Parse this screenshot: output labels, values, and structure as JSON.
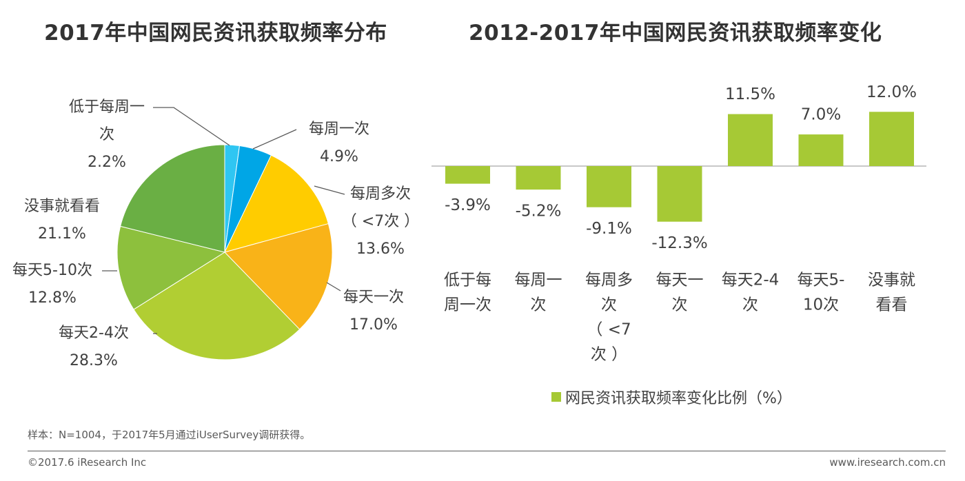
{
  "chart_data": [
    {
      "type": "pie",
      "title": "2017年中国网民资讯获取频率分布",
      "slices": [
        {
          "name": "低于每周一次",
          "label_lines": [
            "低于每周一",
            "次"
          ],
          "value": 2.2,
          "value_label": "2.2%",
          "color": "#2fc6f2"
        },
        {
          "name": "每周一次",
          "label_lines": [
            "每周一次"
          ],
          "value": 4.9,
          "value_label": "4.9%",
          "color": "#00a6e6"
        },
        {
          "name": "每周多次(<7次)",
          "label_lines": [
            "每周多次",
            "（ <7次 ）"
          ],
          "value": 13.6,
          "value_label": "13.6%",
          "color": "#ffcc00"
        },
        {
          "name": "每天一次",
          "label_lines": [
            "每天一次"
          ],
          "value": 17.0,
          "value_label": "17.0%",
          "color": "#f9b318"
        },
        {
          "name": "每天2-4次",
          "label_lines": [
            "每天2-4次"
          ],
          "value": 28.3,
          "value_label": "28.3%",
          "color": "#b1ce33"
        },
        {
          "name": "每天5-10次",
          "label_lines": [
            "每天5-10次"
          ],
          "value": 12.8,
          "value_label": "12.8%",
          "color": "#8dc03d"
        },
        {
          "name": "没事就看看",
          "label_lines": [
            "没事就看看"
          ],
          "value": 21.1,
          "value_label": "21.1%",
          "color": "#6aaf44"
        }
      ]
    },
    {
      "type": "bar",
      "title": "2012-2017年中国网民资讯获取频率变化",
      "categories": [
        {
          "name": "低于每周一次",
          "lines": [
            "低于每",
            "周一次"
          ]
        },
        {
          "name": "每周一次",
          "lines": [
            "每周一",
            "次"
          ]
        },
        {
          "name": "每周多次(<7次)",
          "lines": [
            "每周多",
            "次",
            "（ <7",
            "次 ）"
          ]
        },
        {
          "name": "每天一次",
          "lines": [
            "每天一",
            "次"
          ]
        },
        {
          "name": "每天2-4次",
          "lines": [
            "每天2-4",
            "次"
          ]
        },
        {
          "name": "每天5-10次",
          "lines": [
            "每天5-",
            "10次"
          ]
        },
        {
          "name": "没事就看看",
          "lines": [
            "没事就",
            "看看"
          ]
        }
      ],
      "values": [
        -3.9,
        -5.2,
        -9.1,
        -12.3,
        11.5,
        7.0,
        12.0
      ],
      "value_labels": [
        "-3.9%",
        "-5.2%",
        "-9.1%",
        "-12.3%",
        "11.5%",
        "7.0%",
        "12.0%"
      ],
      "series_name": "网民资讯获取频率变化比例（%）",
      "bar_color": "#a6c935",
      "ylim": [
        -12.3,
        12.0
      ],
      "grid": false,
      "legend_position": "bottom"
    }
  ],
  "note": "样本：N=1004，于2017年5月通过iUserSurvey调研获得。",
  "footer": {
    "copyright": "©2017.6 iResearch Inc",
    "website": "www.iresearch.com.cn"
  }
}
